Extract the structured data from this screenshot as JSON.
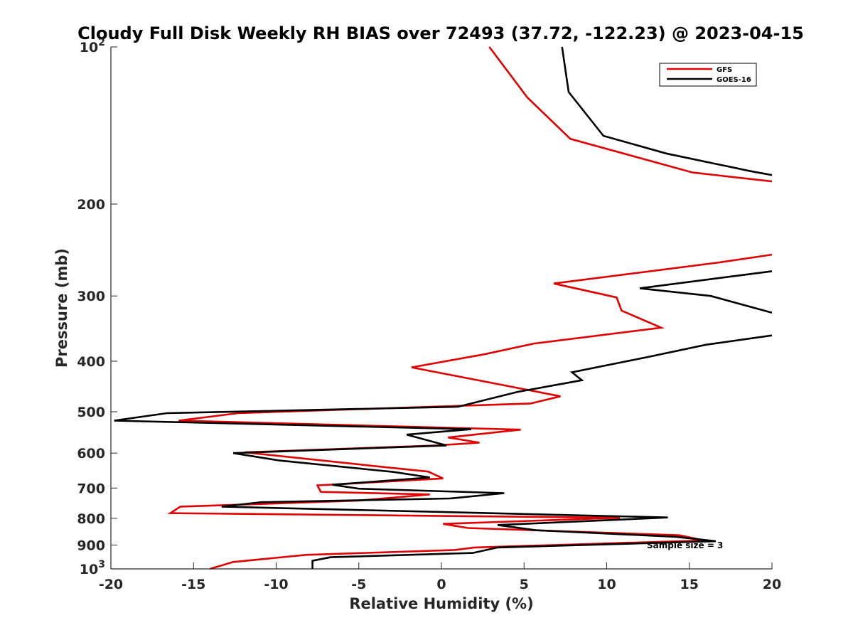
{
  "chart_data": {
    "type": "line",
    "title": "Cloudy Full Disk Weekly RH BIAS over 72493 (37.72, -122.23) @ 2023-04-15",
    "xlabel": "Relative Humidity (%)",
    "ylabel": "Pressure (mb)",
    "xlim": [
      -20,
      20
    ],
    "ylim": [
      100,
      1000
    ],
    "y_scale": "log",
    "y_reversed": true,
    "x_ticks": [
      "-20",
      "-15",
      "-10",
      "-5",
      "0",
      "5",
      "10",
      "15",
      "20"
    ],
    "x_tick_values": [
      -20,
      -15,
      -10,
      -5,
      0,
      5,
      10,
      15,
      20
    ],
    "y_tick_values": [
      100,
      200,
      300,
      400,
      500,
      600,
      700,
      800,
      900,
      1000
    ],
    "y_ticks": [
      {
        "base": "10",
        "exp": "2"
      },
      {
        "base": "200",
        "exp": ""
      },
      {
        "base": "300",
        "exp": ""
      },
      {
        "base": "400",
        "exp": ""
      },
      {
        "base": "500",
        "exp": ""
      },
      {
        "base": "600",
        "exp": ""
      },
      {
        "base": "700",
        "exp": ""
      },
      {
        "base": "800",
        "exp": ""
      },
      {
        "base": "900",
        "exp": ""
      },
      {
        "base": "10",
        "exp": "3"
      }
    ],
    "grid": false,
    "legend_position": "top-right",
    "annotation": "Sample size = 3",
    "series": [
      {
        "name": "GFS",
        "color": "#e00000",
        "points": [
          [
            2.9,
            100
          ],
          [
            5.2,
            125
          ],
          [
            7.8,
            150
          ],
          [
            15.2,
            174
          ],
          [
            20.0,
            181
          ],
          [
            null,
            null
          ],
          [
            20.0,
            250
          ],
          [
            16.7,
            259
          ],
          [
            6.8,
            284
          ],
          [
            10.6,
            302
          ],
          [
            10.9,
            320
          ],
          [
            13.3,
            345
          ],
          [
            5.6,
            370
          ],
          [
            2.6,
            388
          ],
          [
            -1.8,
            411
          ],
          [
            4.6,
            450
          ],
          [
            7.2,
            467
          ],
          [
            5.4,
            482
          ],
          [
            -12.3,
            503
          ],
          [
            -15.9,
            520
          ],
          [
            4.8,
            541
          ],
          [
            0.4,
            560
          ],
          [
            2.3,
            573
          ],
          [
            -0.3,
            580
          ],
          [
            -11.9,
            598
          ],
          [
            -3.1,
            640
          ],
          [
            -0.8,
            651
          ],
          [
            0.1,
            671
          ],
          [
            -7.5,
            692
          ],
          [
            -7.3,
            712
          ],
          [
            -0.7,
            720
          ],
          [
            -5.0,
            740
          ],
          [
            -15.8,
            760
          ],
          [
            -16.4,
            782
          ],
          [
            10.8,
            798
          ],
          [
            0.1,
            820
          ],
          [
            1.6,
            835
          ],
          [
            14.4,
            862
          ],
          [
            15.9,
            882
          ],
          [
            2.0,
            910
          ],
          [
            0.8,
            920
          ],
          [
            -8.2,
            940
          ],
          [
            -12.6,
            970
          ],
          [
            -14.0,
            1000
          ]
        ]
      },
      {
        "name": "GOES-16",
        "color": "#000000",
        "points": [
          [
            7.3,
            100
          ],
          [
            7.7,
            122
          ],
          [
            9.8,
            148
          ],
          [
            13.6,
            160
          ],
          [
            18.7,
            173
          ],
          [
            20.0,
            176
          ],
          [
            null,
            null
          ],
          [
            20.0,
            269
          ],
          [
            12.0,
            290
          ],
          [
            16.3,
            300
          ],
          [
            20.0,
            323
          ],
          [
            null,
            null
          ],
          [
            20.0,
            357
          ],
          [
            16.0,
            372
          ],
          [
            12.6,
            392
          ],
          [
            7.9,
            420
          ],
          [
            8.5,
            435
          ],
          [
            4.6,
            458
          ],
          [
            1.0,
            489
          ],
          [
            -16.6,
            503
          ],
          [
            -19.8,
            520
          ],
          [
            1.8,
            540
          ],
          [
            -2.1,
            553
          ],
          [
            0.3,
            580
          ],
          [
            -12.6,
            600
          ],
          [
            -9.8,
            620
          ],
          [
            -2.9,
            652
          ],
          [
            -0.7,
            668
          ],
          [
            -6.6,
            690
          ],
          [
            -5.0,
            702
          ],
          [
            3.8,
            716
          ],
          [
            0.5,
            733
          ],
          [
            -10.9,
            745
          ],
          [
            -13.3,
            760
          ],
          [
            13.7,
            797
          ],
          [
            3.4,
            824
          ],
          [
            5.7,
            843
          ],
          [
            14.2,
            868
          ],
          [
            16.6,
            885
          ],
          [
            3.4,
            910
          ],
          [
            1.9,
            932
          ],
          [
            -6.7,
            950
          ],
          [
            -7.8,
            965
          ],
          [
            -7.8,
            1000
          ]
        ]
      }
    ]
  }
}
